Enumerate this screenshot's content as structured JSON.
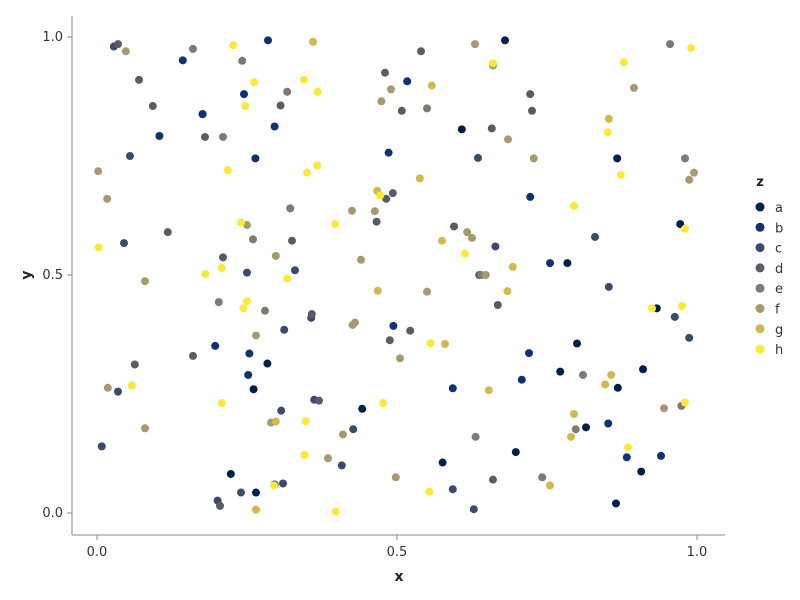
{
  "chart_data": {
    "type": "scatter",
    "xlabel": "x",
    "ylabel": "y",
    "xlim": [
      -0.045,
      1.045
    ],
    "ylim": [
      -0.045,
      1.045
    ],
    "xticks": [
      {
        "value": 0.0,
        "label": "0.0"
      },
      {
        "value": 0.5,
        "label": "0.5"
      },
      {
        "value": 1.0,
        "label": "1.0"
      }
    ],
    "yticks": [
      {
        "value": 0.0,
        "label": "0.0"
      },
      {
        "value": 0.5,
        "label": "0.5"
      },
      {
        "value": 1.0,
        "label": "1.0"
      }
    ],
    "grid": false,
    "legend": {
      "title": "z",
      "position": "right"
    },
    "series": [
      {
        "name": "a",
        "color": "#00204c",
        "points": [
          [
            0.68,
            0.993
          ],
          [
            0.608,
            0.806
          ],
          [
            0.867,
            0.745
          ],
          [
            0.972,
            0.607
          ],
          [
            0.784,
            0.525
          ],
          [
            0.8,
            0.356
          ],
          [
            0.772,
            0.297
          ],
          [
            0.91,
            0.302
          ],
          [
            0.868,
            0.263
          ],
          [
            0.815,
            0.18
          ],
          [
            0.698,
            0.128
          ],
          [
            0.576,
            0.106
          ],
          [
            0.907,
            0.087
          ],
          [
            0.223,
            0.082
          ],
          [
            0.265,
            0.043
          ],
          [
            0.261,
            0.26
          ],
          [
            0.284,
            0.314
          ],
          [
            0.933,
            0.43
          ],
          [
            0.442,
            0.219
          ],
          [
            0.176,
            0.838
          ],
          [
            0.865,
            0.02
          ]
        ]
      },
      {
        "name": "b",
        "color": "#0f3370",
        "points": [
          [
            0.285,
            0.993
          ],
          [
            0.143,
            0.951
          ],
          [
            0.245,
            0.88
          ],
          [
            0.517,
            0.907
          ],
          [
            0.176,
            0.838
          ],
          [
            0.104,
            0.792
          ],
          [
            0.296,
            0.812
          ],
          [
            0.486,
            0.757
          ],
          [
            0.264,
            0.745
          ],
          [
            0.722,
            0.664
          ],
          [
            0.755,
            0.525
          ],
          [
            0.197,
            0.351
          ],
          [
            0.254,
            0.335
          ],
          [
            0.252,
            0.29
          ],
          [
            0.494,
            0.393
          ],
          [
            0.593,
            0.262
          ],
          [
            0.708,
            0.28
          ],
          [
            0.72,
            0.336
          ],
          [
            0.852,
            0.188
          ],
          [
            0.883,
            0.117
          ],
          [
            0.94,
            0.12
          ]
        ]
      },
      {
        "name": "c",
        "color": "#3c4a6e",
        "points": [
          [
            0.028,
            0.98
          ],
          [
            0.055,
            0.75
          ],
          [
            0.045,
            0.567
          ],
          [
            0.008,
            0.14
          ],
          [
            0.035,
            0.255
          ],
          [
            0.307,
            0.215
          ],
          [
            0.31,
            0.062
          ],
          [
            0.25,
            0.505
          ],
          [
            0.312,
            0.385
          ],
          [
            0.33,
            0.51
          ],
          [
            0.357,
            0.41
          ],
          [
            0.362,
            0.238
          ],
          [
            0.427,
            0.176
          ],
          [
            0.408,
            0.1
          ],
          [
            0.296,
            0.06
          ],
          [
            0.201,
            0.026
          ],
          [
            0.24,
            0.043
          ],
          [
            0.635,
            0.746
          ],
          [
            0.664,
            0.56
          ],
          [
            0.83,
            0.58
          ],
          [
            0.853,
            0.475
          ],
          [
            0.987,
            0.368
          ],
          [
            0.963,
            0.412
          ],
          [
            0.628,
            0.008
          ],
          [
            0.593,
            0.05
          ]
        ]
      },
      {
        "name": "d",
        "color": "#5a5c65",
        "points": [
          [
            0.035,
            0.985
          ],
          [
            0.07,
            0.91
          ],
          [
            0.093,
            0.855
          ],
          [
            0.118,
            0.59
          ],
          [
            0.063,
            0.312
          ],
          [
            0.16,
            0.33
          ],
          [
            0.18,
            0.79
          ],
          [
            0.21,
            0.537
          ],
          [
            0.205,
            0.015
          ],
          [
            0.306,
            0.856
          ],
          [
            0.325,
            0.572
          ],
          [
            0.37,
            0.236
          ],
          [
            0.358,
            0.418
          ],
          [
            0.48,
            0.925
          ],
          [
            0.508,
            0.845
          ],
          [
            0.54,
            0.97
          ],
          [
            0.493,
            0.672
          ],
          [
            0.482,
            0.66
          ],
          [
            0.466,
            0.612
          ],
          [
            0.522,
            0.383
          ],
          [
            0.488,
            0.363
          ],
          [
            0.595,
            0.602
          ],
          [
            0.658,
            0.808
          ],
          [
            0.637,
            0.5
          ],
          [
            0.668,
            0.437
          ],
          [
            0.722,
            0.88
          ],
          [
            0.725,
            0.845
          ],
          [
            0.66,
            0.07
          ]
        ]
      },
      {
        "name": "e",
        "color": "#7e7a70",
        "points": [
          [
            0.16,
            0.975
          ],
          [
            0.242,
            0.95
          ],
          [
            0.317,
            0.885
          ],
          [
            0.21,
            0.79
          ],
          [
            0.203,
            0.443
          ],
          [
            0.26,
            0.575
          ],
          [
            0.28,
            0.425
          ],
          [
            0.322,
            0.64
          ],
          [
            0.55,
            0.85
          ],
          [
            0.64,
            0.5
          ],
          [
            0.631,
            0.16
          ],
          [
            0.742,
            0.075
          ],
          [
            0.798,
            0.176
          ],
          [
            0.81,
            0.29
          ],
          [
            0.955,
            0.985
          ],
          [
            0.98,
            0.745
          ],
          [
            0.974,
            0.225
          ]
        ]
      },
      {
        "name": "f",
        "color": "#a69b6e",
        "points": [
          [
            0.048,
            0.97
          ],
          [
            0.017,
            0.66
          ],
          [
            0.002,
            0.718
          ],
          [
            0.08,
            0.487
          ],
          [
            0.018,
            0.263
          ],
          [
            0.08,
            0.178
          ],
          [
            0.25,
            0.605
          ],
          [
            0.298,
            0.54
          ],
          [
            0.265,
            0.373
          ],
          [
            0.29,
            0.19
          ],
          [
            0.385,
            0.115
          ],
          [
            0.41,
            0.165
          ],
          [
            0.426,
            0.395
          ],
          [
            0.43,
            0.4
          ],
          [
            0.44,
            0.532
          ],
          [
            0.425,
            0.635
          ],
          [
            0.463,
            0.634
          ],
          [
            0.474,
            0.865
          ],
          [
            0.49,
            0.89
          ],
          [
            0.505,
            0.325
          ],
          [
            0.498,
            0.075
          ],
          [
            0.55,
            0.465
          ],
          [
            0.625,
            0.578
          ],
          [
            0.617,
            0.59
          ],
          [
            0.648,
            0.5
          ],
          [
            0.63,
            0.985
          ],
          [
            0.66,
            0.94
          ],
          [
            0.685,
            0.785
          ],
          [
            0.728,
            0.745
          ],
          [
            0.895,
            0.893
          ],
          [
            0.987,
            0.7
          ],
          [
            0.995,
            0.715
          ],
          [
            0.945,
            0.22
          ]
        ]
      },
      {
        "name": "g",
        "color": "#d2b84e",
        "points": [
          [
            0.36,
            0.99
          ],
          [
            0.558,
            0.898
          ],
          [
            0.538,
            0.703
          ],
          [
            0.467,
            0.677
          ],
          [
            0.468,
            0.467
          ],
          [
            0.575,
            0.572
          ],
          [
            0.58,
            0.355
          ],
          [
            0.684,
            0.466
          ],
          [
            0.653,
            0.258
          ],
          [
            0.693,
            0.517
          ],
          [
            0.755,
            0.058
          ],
          [
            0.79,
            0.16
          ],
          [
            0.795,
            0.208
          ],
          [
            0.847,
            0.27
          ],
          [
            0.857,
            0.29
          ],
          [
            0.853,
            0.828
          ],
          [
            0.265,
            0.007
          ],
          [
            0.298,
            0.192
          ]
        ]
      },
      {
        "name": "h",
        "color": "#fde737",
        "points": [
          [
            0.227,
            0.983
          ],
          [
            0.262,
            0.905
          ],
          [
            0.247,
            0.855
          ],
          [
            0.345,
            0.91
          ],
          [
            0.368,
            0.885
          ],
          [
            0.218,
            0.72
          ],
          [
            0.35,
            0.715
          ],
          [
            0.367,
            0.73
          ],
          [
            0.24,
            0.61
          ],
          [
            0.181,
            0.502
          ],
          [
            0.208,
            0.515
          ],
          [
            0.25,
            0.445
          ],
          [
            0.244,
            0.43
          ],
          [
            0.317,
            0.493
          ],
          [
            0.397,
            0.607
          ],
          [
            0.472,
            0.667
          ],
          [
            0.477,
            0.231
          ],
          [
            0.556,
            0.357
          ],
          [
            0.554,
            0.045
          ],
          [
            0.613,
            0.545
          ],
          [
            0.66,
            0.945
          ],
          [
            0.795,
            0.645
          ],
          [
            0.851,
            0.8
          ],
          [
            0.873,
            0.71
          ],
          [
            0.878,
            0.947
          ],
          [
            0.98,
            0.597
          ],
          [
            0.99,
            0.977
          ],
          [
            0.925,
            0.43
          ],
          [
            0.975,
            0.435
          ],
          [
            0.98,
            0.232
          ],
          [
            0.885,
            0.138
          ],
          [
            0.058,
            0.268
          ],
          [
            0.003,
            0.558
          ],
          [
            0.208,
            0.231
          ],
          [
            0.348,
            0.193
          ],
          [
            0.346,
            0.122
          ],
          [
            0.398,
            0.003
          ],
          [
            0.295,
            0.058
          ]
        ]
      }
    ]
  }
}
